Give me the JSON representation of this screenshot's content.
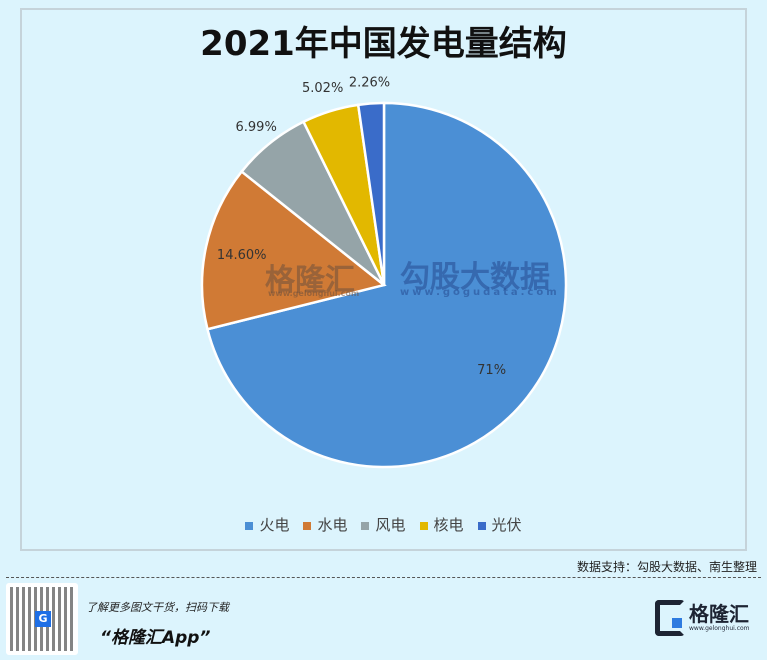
{
  "chart_data": {
    "type": "pie",
    "title": "2021年中国发电量结构",
    "categories": [
      "火电",
      "水电",
      "风电",
      "核电",
      "光伏"
    ],
    "values": [
      71,
      14.6,
      6.99,
      5.02,
      2.26
    ],
    "labels": [
      "71%",
      "14.60%",
      "6.99%",
      "5.02%",
      "2.26%"
    ],
    "colors": [
      "#4b8fd5",
      "#d07a35",
      "#95a4a8",
      "#e2b800",
      "#3a6cc9"
    ],
    "legend_position": "bottom"
  },
  "watermarks": {
    "left": "格隆汇",
    "left_url": "www.gelonghui.com",
    "right": "勾股大数据",
    "right_url": "www.gogudata.com"
  },
  "source": "数据支持：勾股大数据、南生整理",
  "footer": {
    "promo_line": "了解更多图文干货，扫码下载",
    "app_name": "“格隆汇App”",
    "logo_text": "格隆汇",
    "logo_url": "www.gelonghui.com",
    "qr_badge": "G"
  }
}
